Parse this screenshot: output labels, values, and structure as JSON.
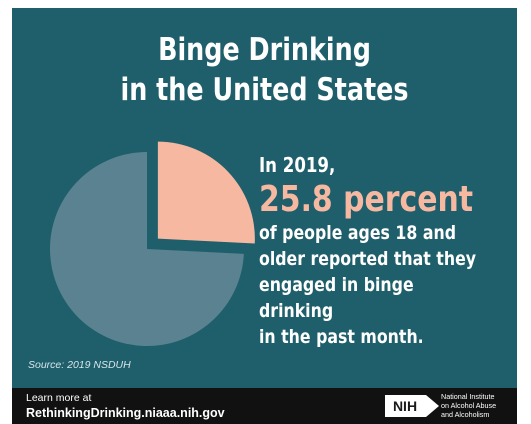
{
  "title": {
    "line1": "Binge Drinking",
    "line2": "in the United States"
  },
  "statement": {
    "lead": "In 2019,",
    "highlight": "25.8 percent",
    "lines": [
      "of people ages 18 and",
      "older reported that they",
      "engaged in binge drinking",
      "in the past month."
    ]
  },
  "source": "Source: 2019 NSDUH",
  "footer": {
    "learn_more": "Learn more at",
    "url": "RethinkingDrinking.niaaa.nih.gov",
    "logo_text": "NIH",
    "org_lines": [
      "National Institute",
      "on Alcohol Abuse",
      "and Alcoholism"
    ]
  },
  "colors": {
    "background": "#1f5f6b",
    "highlight": "#f6b8a1",
    "pie_main": "#5b8291",
    "pie_highlight": "#f6b8a1",
    "footer": "#111111"
  },
  "chart_data": {
    "type": "pie",
    "title": "",
    "slices": [
      {
        "label": "",
        "value": 25.8,
        "color": "#f6b8a1",
        "exploded": true
      },
      {
        "label": "",
        "value": 74.2,
        "color": "#5b8291",
        "exploded": false
      }
    ]
  }
}
